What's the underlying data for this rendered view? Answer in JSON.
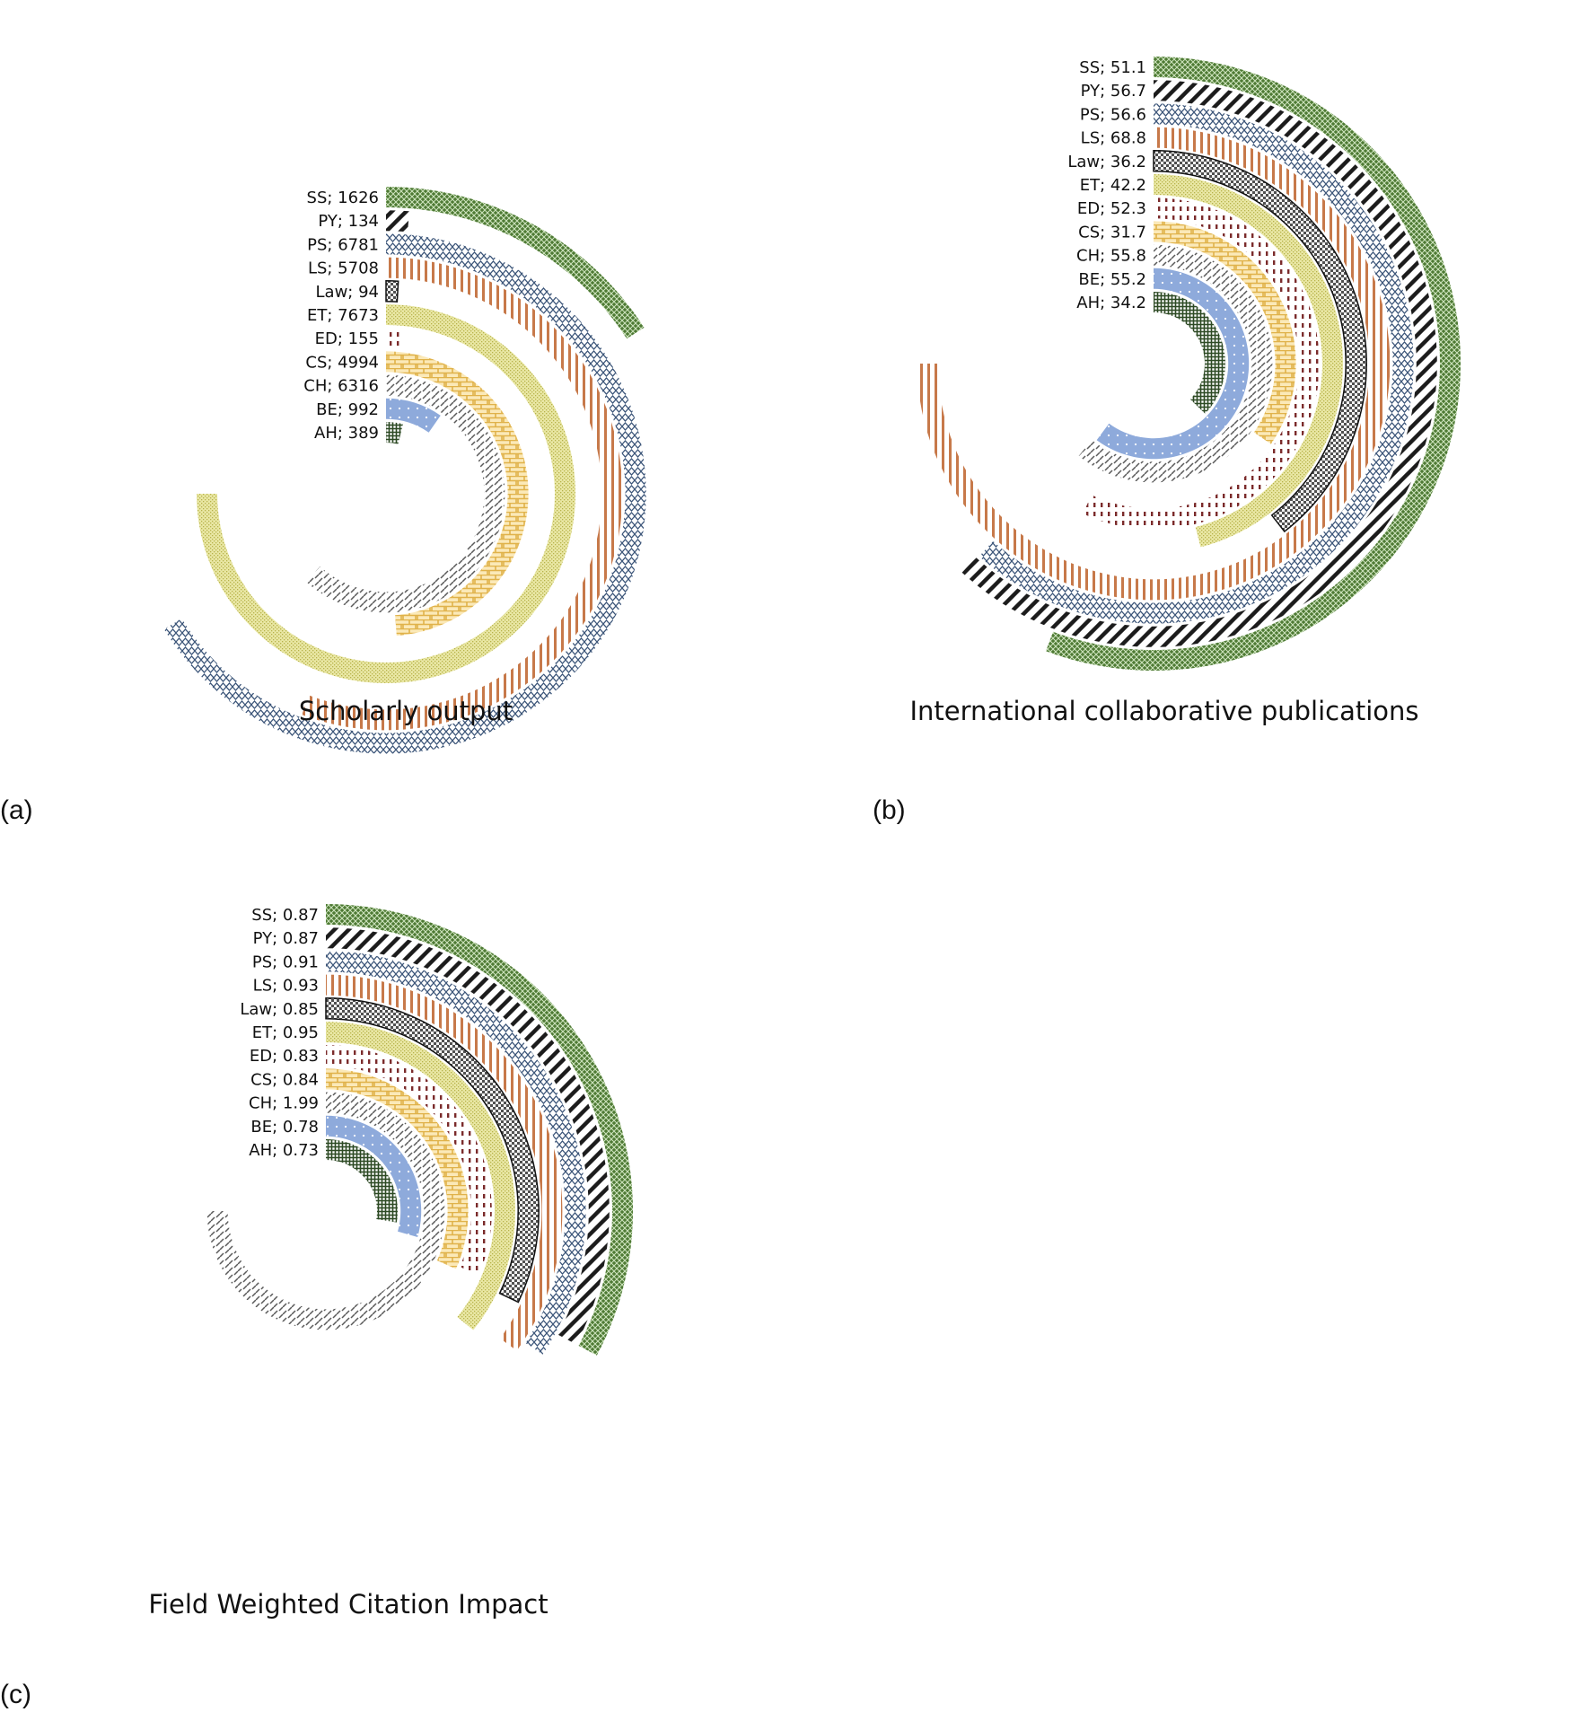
{
  "colors": {
    "SS": "#4e7a34",
    "PY": "#1c1c1c",
    "PS": "#3a5478",
    "LS": "#c7794a",
    "Law": "#505050",
    "ET": "#d6d26a",
    "ED": "#7b2b2b",
    "CS": "#e0b24a",
    "CH": "#8a8a8a",
    "BE": "#8eaadb",
    "AH": "#2d4a24"
  },
  "chart_data": [
    {
      "type": "radial-bar",
      "title": "Scholarly output",
      "panel": "(a)",
      "series": [
        {
          "category": "SS",
          "value": 1626,
          "label": "SS; 1626"
        },
        {
          "category": "PY",
          "value": 134,
          "label": "PY; 134"
        },
        {
          "category": "PS",
          "value": 6781,
          "label": "PS; 6781"
        },
        {
          "category": "LS",
          "value": 5708,
          "label": "LS; 5708"
        },
        {
          "category": "Law",
          "value": 94,
          "label": "Law; 94"
        },
        {
          "category": "ET",
          "value": 7673,
          "label": "ET; 7673"
        },
        {
          "category": "ED",
          "value": 155,
          "label": "ED; 155"
        },
        {
          "category": "CS",
          "value": 4994,
          "label": "CS; 4994"
        },
        {
          "category": "CH",
          "value": 6316,
          "label": "CH; 6316"
        },
        {
          "category": "BE",
          "value": 992,
          "label": "BE; 992"
        },
        {
          "category": "AH",
          "value": 389,
          "label": "AH; 389"
        }
      ]
    },
    {
      "type": "radial-bar",
      "title": "International collaborative publications",
      "panel": "(b)",
      "series": [
        {
          "category": "SS",
          "value": 51.1,
          "label": "SS; 51.1"
        },
        {
          "category": "PY",
          "value": 56.7,
          "label": "PY; 56.7"
        },
        {
          "category": "PS",
          "value": 56.6,
          "label": "PS; 56.6"
        },
        {
          "category": "LS",
          "value": 68.8,
          "label": "LS; 68.8"
        },
        {
          "category": "Law",
          "value": 36.2,
          "label": "Law; 36.2"
        },
        {
          "category": "ET",
          "value": 42.2,
          "label": "ET; 42.2"
        },
        {
          "category": "ED",
          "value": 52.3,
          "label": "ED; 52.3"
        },
        {
          "category": "CS",
          "value": 31.7,
          "label": "CS; 31.7"
        },
        {
          "category": "CH",
          "value": 55.8,
          "label": "CH; 55.8"
        },
        {
          "category": "BE",
          "value": 55.2,
          "label": "BE; 55.2"
        },
        {
          "category": "AH",
          "value": 34.2,
          "label": "AH; 34.2"
        }
      ]
    },
    {
      "type": "radial-bar",
      "title": "Field Weighted Citation Impact",
      "panel": "(c)",
      "series": [
        {
          "category": "SS",
          "value": 0.87,
          "label": "SS; 0.87"
        },
        {
          "category": "PY",
          "value": 0.87,
          "label": "PY; 0.87"
        },
        {
          "category": "PS",
          "value": 0.91,
          "label": "PS; 0.91"
        },
        {
          "category": "LS",
          "value": 0.93,
          "label": "LS; 0.93"
        },
        {
          "category": "Law",
          "value": 0.85,
          "label": "Law; 0.85"
        },
        {
          "category": "ET",
          "value": 0.95,
          "label": "ET; 0.95"
        },
        {
          "category": "ED",
          "value": 0.83,
          "label": "ED; 0.83"
        },
        {
          "category": "CS",
          "value": 0.84,
          "label": "CS; 0.84"
        },
        {
          "category": "CH",
          "value": 1.99,
          "label": "CH; 1.99"
        },
        {
          "category": "BE",
          "value": 0.78,
          "label": "BE; 0.78"
        },
        {
          "category": "AH",
          "value": 0.73,
          "label": "AH; 0.73"
        }
      ]
    }
  ]
}
